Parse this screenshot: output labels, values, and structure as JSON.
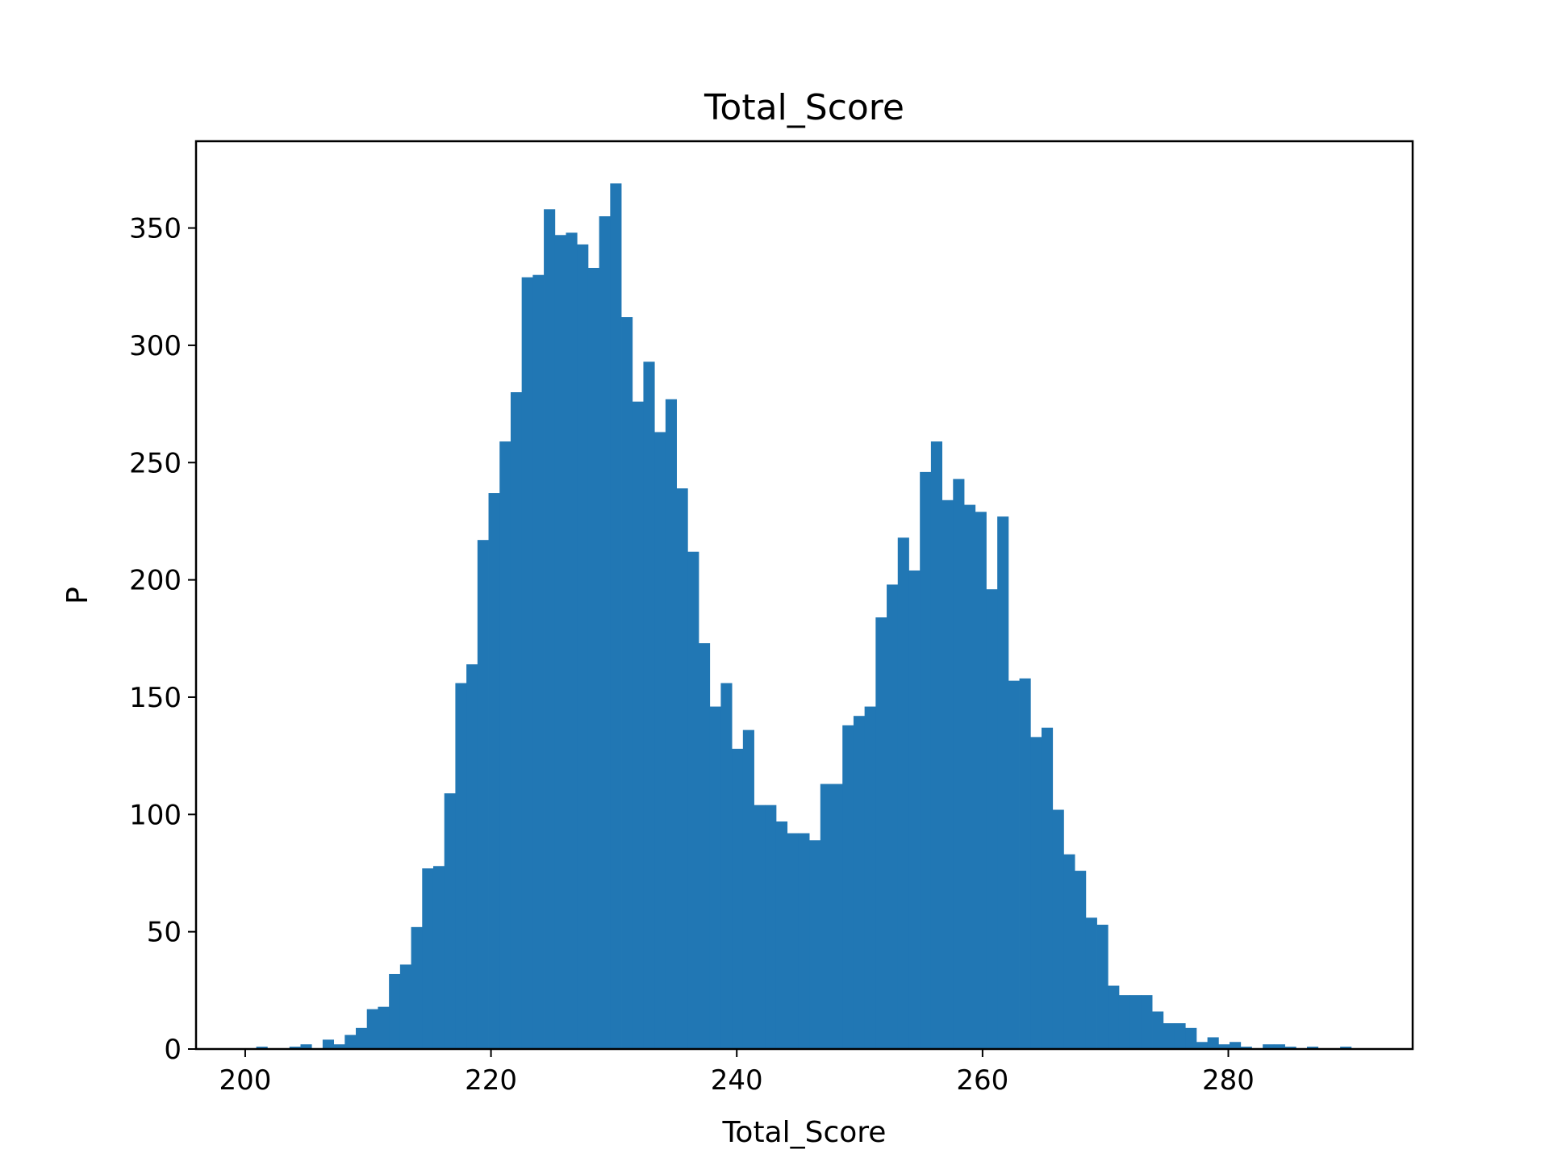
{
  "chart_data": {
    "type": "bar",
    "title": "Total_Score",
    "xlabel": "Total_Score",
    "ylabel": "P",
    "xlim": [
      196,
      295
    ],
    "ylim": [
      0,
      387
    ],
    "xticks": [
      200,
      220,
      240,
      260,
      280
    ],
    "yticks": [
      0,
      50,
      100,
      150,
      200,
      250,
      300,
      350
    ],
    "grid": false,
    "color": "#2177b4",
    "bin_edges_start": 200.0,
    "bin_width": 0.9,
    "counts": [
      0,
      1,
      0,
      0,
      1,
      2,
      0,
      4,
      2,
      6,
      9,
      17,
      18,
      32,
      36,
      52,
      77,
      78,
      109,
      156,
      164,
      217,
      237,
      259,
      280,
      329,
      330,
      358,
      347,
      348,
      343,
      333,
      355,
      369,
      312,
      276,
      293,
      263,
      277,
      239,
      212,
      173,
      146,
      156,
      128,
      136,
      104,
      104,
      97,
      92,
      92,
      89,
      113,
      113,
      138,
      142,
      146,
      184,
      198,
      218,
      204,
      246,
      259,
      234,
      243,
      232,
      229,
      196,
      227,
      157,
      158,
      133,
      137,
      102,
      83,
      76,
      56,
      53,
      27,
      23,
      23,
      23,
      16,
      11,
      11,
      9,
      3,
      5,
      2,
      3,
      1,
      0,
      2,
      2,
      1,
      0,
      1,
      0,
      0,
      1
    ]
  }
}
